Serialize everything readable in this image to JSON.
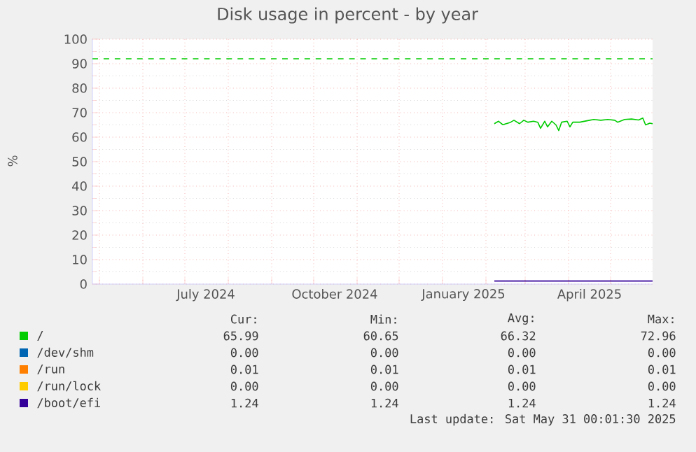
{
  "chart_data": {
    "type": "line",
    "title": "Disk usage in percent - by year",
    "ylabel": "%",
    "xlim": [
      "2024-04-26",
      "2025-05-31"
    ],
    "xticks": [
      {
        "value": "2024-05-01",
        "label": null
      },
      {
        "value": "2024-06-01",
        "label": null
      },
      {
        "value": "2024-07-01",
        "label": null
      },
      {
        "value": "2024-07-16",
        "label": "July 2024"
      },
      {
        "value": "2024-08-01",
        "label": null
      },
      {
        "value": "2024-09-01",
        "label": null
      },
      {
        "value": "2024-10-01",
        "label": null
      },
      {
        "value": "2024-10-16",
        "label": "October 2024"
      },
      {
        "value": "2024-11-01",
        "label": null
      },
      {
        "value": "2024-12-01",
        "label": null
      },
      {
        "value": "2025-01-01",
        "label": null
      },
      {
        "value": "2025-01-16",
        "label": "January 2025"
      },
      {
        "value": "2025-02-01",
        "label": null
      },
      {
        "value": "2025-03-01",
        "label": null
      },
      {
        "value": "2025-04-01",
        "label": null
      },
      {
        "value": "2025-04-16",
        "label": "April 2025"
      },
      {
        "value": "2025-05-01",
        "label": null
      }
    ],
    "ylim": [
      0,
      100
    ],
    "yticks": [
      0,
      10,
      20,
      30,
      40,
      50,
      60,
      70,
      80,
      90,
      100
    ],
    "grid": true,
    "legend": "bottom",
    "ref_lines": [
      {
        "axis": "y",
        "value": 92,
        "color": "#00cc00",
        "line_style": "dashed"
      }
    ],
    "series": [
      {
        "name": "/",
        "color": "#00cc00",
        "x": [
          "2025-02-07",
          "2025-02-10",
          "2025-02-13",
          "2025-02-18",
          "2025-02-21",
          "2025-02-25",
          "2025-02-28",
          "2025-03-03",
          "2025-03-07",
          "2025-03-10",
          "2025-03-12",
          "2025-03-15",
          "2025-03-17",
          "2025-03-20",
          "2025-03-23",
          "2025-03-25",
          "2025-03-27",
          "2025-03-31",
          "2025-04-02",
          "2025-04-04",
          "2025-04-09",
          "2025-04-16",
          "2025-04-19",
          "2025-04-24",
          "2025-04-29",
          "2025-05-04",
          "2025-05-06",
          "2025-05-11",
          "2025-05-16",
          "2025-05-21",
          "2025-05-24",
          "2025-05-26",
          "2025-05-29",
          "2025-05-31"
        ],
        "values": [
          65.5,
          66.5,
          65.1,
          65.9,
          66.9,
          65.5,
          66.9,
          66.1,
          66.5,
          66.1,
          63.6,
          66.5,
          64.2,
          66.5,
          65.0,
          62.7,
          66.1,
          66.5,
          64.2,
          66.1,
          66.1,
          66.9,
          67.2,
          66.9,
          67.2,
          66.9,
          66.1,
          67.2,
          67.4,
          67.0,
          67.8,
          65.0,
          65.7,
          65.5
        ]
      },
      {
        "name": "/dev/shm",
        "color": "#0066b3"
      },
      {
        "name": "/run",
        "color": "#ff8000"
      },
      {
        "name": "/run/lock",
        "color": "#ffcc00"
      },
      {
        "name": "/boot/efi",
        "color": "#330099",
        "x": [
          "2025-02-07",
          "2025-05-31"
        ],
        "values": [
          1.24,
          1.24
        ]
      }
    ],
    "annotations": [
      "Cur:",
      "Min:",
      "Avg:",
      "Max:",
      "65.99",
      "60.65",
      "66.32",
      "72.96",
      "0.00",
      "0.00",
      "0.00",
      "0.00",
      "0.01",
      "0.01",
      "0.01",
      "0.01",
      "0.00",
      "0.00",
      "0.00",
      "0.00",
      "1.24",
      "1.24",
      "1.24",
      "1.24",
      "Last update: Sat May 31 00:01:30 2025"
    ]
  }
}
